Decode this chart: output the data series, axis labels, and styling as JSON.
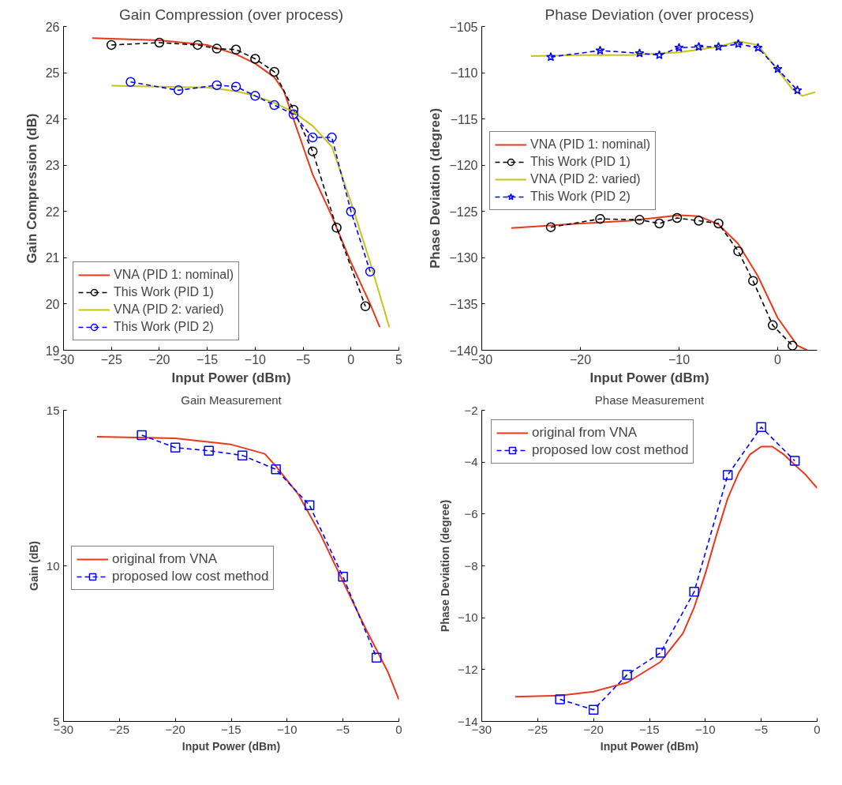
{
  "chart_data": [
    {
      "type": "line",
      "title": "Gain Compression (over process)",
      "xlabel": "Input Power (dBm)",
      "ylabel": "Gain Compression (dB)",
      "xlim": [
        -30,
        5
      ],
      "xticks": [
        -30,
        -25,
        -20,
        -15,
        -10,
        -5,
        0,
        5
      ],
      "ylim": [
        19,
        26
      ],
      "yticks": [
        19,
        20,
        21,
        22,
        23,
        24,
        25,
        26
      ],
      "grid": false,
      "legend": "bottom left",
      "series": [
        {
          "name": "VNA (PID 1: nominal)",
          "color": "#e8391c",
          "marker": "none",
          "line_style": "solid",
          "x": [
            -27,
            -20,
            -15,
            -12,
            -10,
            -8,
            -7,
            -6,
            -5,
            -4,
            -2,
            0,
            2,
            3
          ],
          "values": [
            25.75,
            25.7,
            25.6,
            25.4,
            25.2,
            24.9,
            24.6,
            24.0,
            23.4,
            22.8,
            21.9,
            20.9,
            20.0,
            19.5
          ]
        },
        {
          "name": "This Work (PID 1)",
          "color": "#000000",
          "marker": "circle",
          "line_style": "dashed",
          "x": [
            -25,
            -20,
            -16,
            -14,
            -12,
            -10,
            -8,
            -6,
            -4,
            -1.5,
            1.5
          ],
          "values": [
            25.6,
            25.65,
            25.6,
            25.52,
            25.5,
            25.3,
            25.02,
            24.2,
            23.3,
            21.65,
            19.95
          ]
        },
        {
          "name": "VNA (PID 2: varied)",
          "color": "#c8c317",
          "marker": "none",
          "line_style": "solid",
          "x": [
            -25,
            -20,
            -15,
            -12,
            -10,
            -8,
            -6,
            -4,
            -2,
            0,
            2,
            4
          ],
          "values": [
            24.72,
            24.7,
            24.68,
            24.6,
            24.5,
            24.35,
            24.15,
            23.85,
            23.4,
            22.2,
            20.9,
            19.5
          ]
        },
        {
          "name": "This Work (PID 2)",
          "color": "#0000ff",
          "marker": "circle",
          "line_style": "dashed",
          "x": [
            -23,
            -18,
            -14,
            -12,
            -10,
            -8,
            -6,
            -4,
            -2,
            0,
            2
          ],
          "values": [
            24.8,
            24.62,
            24.73,
            24.7,
            24.5,
            24.3,
            24.1,
            23.6,
            23.6,
            22.0,
            20.7
          ]
        }
      ]
    },
    {
      "type": "line",
      "title": "Phase Deviation (over process)",
      "xlabel": "Input Power (dBm)",
      "ylabel": "Phase Deviation (degree)",
      "xlim": [
        -30,
        4
      ],
      "xticks": [
        -30,
        -20,
        -10,
        0
      ],
      "ylim": [
        -140,
        -105
      ],
      "yticks": [
        -140,
        -135,
        -130,
        -125,
        -120,
        -115,
        -110,
        -105
      ],
      "grid": false,
      "legend": "left",
      "series": [
        {
          "name": "VNA (PID 1: nominal)",
          "color": "#e8391c",
          "marker": "none",
          "line_style": "solid",
          "x": [
            -27,
            -20,
            -15,
            -10,
            -8,
            -6,
            -4,
            -2,
            0,
            2,
            3
          ],
          "values": [
            -126.8,
            -126.3,
            -126.0,
            -125.4,
            -125.5,
            -126.4,
            -128.5,
            -132.0,
            -136.5,
            -139.5,
            -140.0
          ]
        },
        {
          "name": "This Work (PID 1)",
          "color": "#000000",
          "marker": "circle",
          "line_style": "dashed",
          "x": [
            -23,
            -18,
            -14,
            -12,
            -10.2,
            -8,
            -6,
            -4,
            -2.5,
            -0.5,
            1.5
          ],
          "values": [
            -126.7,
            -125.8,
            -125.9,
            -126.3,
            -125.7,
            -126.0,
            -126.3,
            -129.3,
            -132.5,
            -137.3,
            -139.5
          ]
        },
        {
          "name": "VNA (PID 2: varied)",
          "color": "#c8c317",
          "marker": "none",
          "line_style": "solid",
          "x": [
            -25,
            -20,
            -15,
            -10,
            -6,
            -4,
            -2,
            0,
            1.5,
            2.5,
            3.8
          ],
          "values": [
            -108.2,
            -108.1,
            -108.1,
            -107.8,
            -107.2,
            -106.6,
            -107.0,
            -109.7,
            -111.8,
            -112.5,
            -112.1
          ]
        },
        {
          "name": "This Work (PID 2)",
          "color": "#0000ff",
          "marker": "star",
          "line_style": "dashed",
          "x": [
            -23,
            -18,
            -14,
            -12,
            -10,
            -8,
            -6,
            -4,
            -2,
            0,
            2
          ],
          "values": [
            -108.3,
            -107.6,
            -107.9,
            -108.1,
            -107.3,
            -107.2,
            -107.2,
            -106.9,
            -107.3,
            -109.6,
            -111.9
          ]
        }
      ]
    },
    {
      "type": "line",
      "title": "Gain Measurement",
      "xlabel": "Input Power (dBm)",
      "ylabel": "Gain (dB)",
      "xlim": [
        -30,
        0
      ],
      "xticks": [
        -30,
        -25,
        -20,
        -15,
        -10,
        -5,
        0
      ],
      "ylim": [
        5,
        15
      ],
      "yticks": [
        5,
        10,
        15
      ],
      "grid": false,
      "legend": "left",
      "series": [
        {
          "name": "original from VNA",
          "color": "#e8391c",
          "marker": "none",
          "line_style": "solid",
          "x": [
            -27,
            -20,
            -15,
            -12,
            -11,
            -9,
            -7,
            -5,
            -3,
            -1,
            0
          ],
          "values": [
            14.15,
            14.1,
            13.9,
            13.6,
            13.2,
            12.3,
            11.0,
            9.5,
            8.0,
            6.6,
            5.7
          ]
        },
        {
          "name": "proposed low cost method",
          "color": "#0000ff",
          "marker": "square",
          "line_style": "dashed",
          "x": [
            -23,
            -20,
            -17,
            -14,
            -11,
            -8,
            -5,
            -2
          ],
          "values": [
            14.2,
            13.8,
            13.7,
            13.55,
            13.1,
            11.95,
            9.65,
            7.05
          ]
        }
      ]
    },
    {
      "type": "line",
      "title": "Phase Measurement",
      "xlabel": "Input Power (dBm)",
      "ylabel": "Phase Deviation (degree)",
      "xlim": [
        -30,
        0
      ],
      "xticks": [
        -30,
        -25,
        -20,
        -15,
        -10,
        -5,
        0
      ],
      "ylim": [
        -14,
        -2
      ],
      "yticks": [
        -14,
        -12,
        -10,
        -8,
        -6,
        -4,
        -2
      ],
      "grid": false,
      "legend": "top left",
      "series": [
        {
          "name": "original from VNA",
          "color": "#e8391c",
          "marker": "none",
          "line_style": "solid",
          "x": [
            -27,
            -23,
            -20,
            -17,
            -14,
            -12,
            -11,
            -10,
            -9,
            -8,
            -7,
            -6,
            -5,
            -4,
            -3,
            -2,
            -1,
            0
          ],
          "values": [
            -13.05,
            -13.0,
            -12.85,
            -12.5,
            -11.7,
            -10.6,
            -9.6,
            -8.3,
            -6.8,
            -5.4,
            -4.4,
            -3.7,
            -3.4,
            -3.4,
            -3.7,
            -4.1,
            -4.5,
            -5.0
          ]
        },
        {
          "name": "proposed low cost method",
          "color": "#0000ff",
          "marker": "square",
          "line_style": "dashed",
          "x": [
            -23,
            -20,
            -17,
            -14,
            -11,
            -8,
            -5,
            -2
          ],
          "values": [
            -13.15,
            -13.55,
            -12.2,
            -11.35,
            -9.0,
            -4.5,
            -2.65,
            -3.95
          ]
        }
      ]
    }
  ]
}
